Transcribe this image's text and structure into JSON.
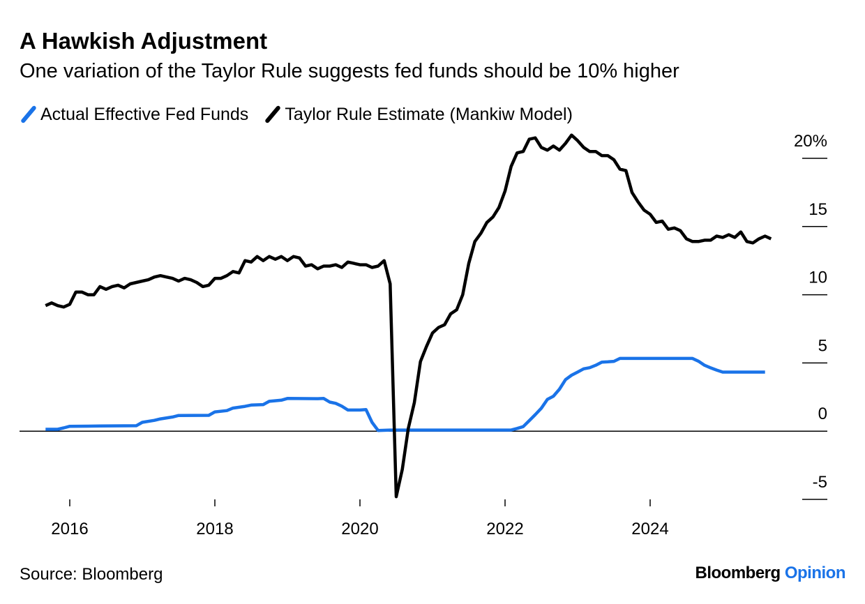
{
  "header": {
    "title": "A Hawkish Adjustment",
    "subtitle": "One variation of the Taylor Rule suggests fed funds should be 10% higher"
  },
  "footer": {
    "source": "Source: Bloomberg",
    "brand_primary": "Bloomberg",
    "brand_secondary": "Opinion"
  },
  "colors": {
    "actual": "#1a73e8",
    "taylor": "#000000",
    "brand_accent": "#1a73e8"
  },
  "chart_data": {
    "type": "line",
    "title": "A Hawkish Adjustment",
    "subtitle": "One variation of the Taylor Rule suggests fed funds should be 10% higher",
    "xlabel": "",
    "ylabel": "",
    "xlim": [
      "2015-08",
      "2025-12"
    ],
    "ylim": [
      -5,
      20
    ],
    "y_ticks": [
      20,
      15,
      10,
      5,
      0,
      -5
    ],
    "y_tick_labels": [
      "20%",
      "15",
      "10",
      "5",
      "0",
      "-5"
    ],
    "x_ticks": [
      2016,
      2018,
      2020,
      2022,
      2024
    ],
    "x_tick_labels": [
      "2016",
      "2018",
      "2020",
      "2022",
      "2024"
    ],
    "y_axis_position": "right",
    "zero_line": true,
    "grid": false,
    "legend_position": "top-left",
    "series": [
      {
        "name": "Actual Effective Fed Funds",
        "color": "#1a73e8",
        "points": [
          [
            "2015-09",
            0.14
          ],
          [
            "2015-10",
            0.14
          ],
          [
            "2015-11",
            0.14
          ],
          [
            "2015-12",
            0.24
          ],
          [
            "2016-01",
            0.36
          ],
          [
            "2016-06",
            0.38
          ],
          [
            "2016-12",
            0.4
          ],
          [
            "2017-01",
            0.65
          ],
          [
            "2017-03",
            0.79
          ],
          [
            "2017-04",
            0.9
          ],
          [
            "2017-06",
            1.04
          ],
          [
            "2017-07",
            1.15
          ],
          [
            "2017-12",
            1.16
          ],
          [
            "2018-01",
            1.41
          ],
          [
            "2018-03",
            1.51
          ],
          [
            "2018-04",
            1.69
          ],
          [
            "2018-06",
            1.82
          ],
          [
            "2018-07",
            1.91
          ],
          [
            "2018-09",
            1.95
          ],
          [
            "2018-10",
            2.19
          ],
          [
            "2018-12",
            2.27
          ],
          [
            "2019-01",
            2.4
          ],
          [
            "2019-06",
            2.38
          ],
          [
            "2019-07",
            2.4
          ],
          [
            "2019-08",
            2.13
          ],
          [
            "2019-09",
            2.04
          ],
          [
            "2019-10",
            1.83
          ],
          [
            "2019-11",
            1.55
          ],
          [
            "2020-01",
            1.55
          ],
          [
            "2020-02",
            1.58
          ],
          [
            "2020-03",
            0.65
          ],
          [
            "2020-04",
            0.05
          ],
          [
            "2020-06",
            0.08
          ],
          [
            "2021-06",
            0.08
          ],
          [
            "2022-02",
            0.08
          ],
          [
            "2022-03",
            0.2
          ],
          [
            "2022-04",
            0.33
          ],
          [
            "2022-05",
            0.77
          ],
          [
            "2022-06",
            1.21
          ],
          [
            "2022-07",
            1.68
          ],
          [
            "2022-08",
            2.33
          ],
          [
            "2022-09",
            2.56
          ],
          [
            "2022-10",
            3.08
          ],
          [
            "2022-11",
            3.78
          ],
          [
            "2022-12",
            4.1
          ],
          [
            "2023-01",
            4.33
          ],
          [
            "2023-02",
            4.57
          ],
          [
            "2023-03",
            4.65
          ],
          [
            "2023-04",
            4.83
          ],
          [
            "2023-05",
            5.06
          ],
          [
            "2023-06",
            5.08
          ],
          [
            "2023-07",
            5.12
          ],
          [
            "2023-08",
            5.33
          ],
          [
            "2024-01",
            5.33
          ],
          [
            "2024-08",
            5.33
          ],
          [
            "2024-09",
            5.13
          ],
          [
            "2024-10",
            4.83
          ],
          [
            "2024-11",
            4.64
          ],
          [
            "2024-12",
            4.48
          ],
          [
            "2025-01",
            4.33
          ],
          [
            "2025-08",
            4.33
          ]
        ]
      },
      {
        "name": "Taylor Rule Estimate (Mankiw Model)",
        "color": "#000000",
        "points": [
          [
            "2015-09",
            9.2
          ],
          [
            "2015-10",
            9.4
          ],
          [
            "2015-11",
            9.2
          ],
          [
            "2015-12",
            9.1
          ],
          [
            "2016-01",
            9.3
          ],
          [
            "2016-02",
            10.2
          ],
          [
            "2016-03",
            10.2
          ],
          [
            "2016-04",
            10.0
          ],
          [
            "2016-05",
            10.0
          ],
          [
            "2016-06",
            10.6
          ],
          [
            "2016-07",
            10.4
          ],
          [
            "2016-08",
            10.6
          ],
          [
            "2016-09",
            10.7
          ],
          [
            "2016-10",
            10.5
          ],
          [
            "2016-11",
            10.8
          ],
          [
            "2016-12",
            10.9
          ],
          [
            "2017-01",
            11.0
          ],
          [
            "2017-02",
            11.1
          ],
          [
            "2017-03",
            11.3
          ],
          [
            "2017-04",
            11.4
          ],
          [
            "2017-05",
            11.3
          ],
          [
            "2017-06",
            11.2
          ],
          [
            "2017-07",
            11.0
          ],
          [
            "2017-08",
            11.2
          ],
          [
            "2017-09",
            11.1
          ],
          [
            "2017-10",
            10.9
          ],
          [
            "2017-11",
            10.6
          ],
          [
            "2017-12",
            10.7
          ],
          [
            "2018-01",
            11.2
          ],
          [
            "2018-02",
            11.2
          ],
          [
            "2018-03",
            11.4
          ],
          [
            "2018-04",
            11.7
          ],
          [
            "2018-05",
            11.6
          ],
          [
            "2018-06",
            12.5
          ],
          [
            "2018-07",
            12.4
          ],
          [
            "2018-08",
            12.8
          ],
          [
            "2018-09",
            12.5
          ],
          [
            "2018-10",
            12.8
          ],
          [
            "2018-11",
            12.6
          ],
          [
            "2018-12",
            12.8
          ],
          [
            "2019-01",
            12.5
          ],
          [
            "2019-02",
            12.8
          ],
          [
            "2019-03",
            12.7
          ],
          [
            "2019-04",
            12.1
          ],
          [
            "2019-05",
            12.2
          ],
          [
            "2019-06",
            11.9
          ],
          [
            "2019-07",
            12.1
          ],
          [
            "2019-08",
            12.1
          ],
          [
            "2019-09",
            12.2
          ],
          [
            "2019-10",
            12.0
          ],
          [
            "2019-11",
            12.4
          ],
          [
            "2019-12",
            12.3
          ],
          [
            "2020-01",
            12.2
          ],
          [
            "2020-02",
            12.2
          ],
          [
            "2020-03",
            12.0
          ],
          [
            "2020-04",
            12.1
          ],
          [
            "2020-05",
            12.5
          ],
          [
            "2020-06",
            10.8
          ],
          [
            "2020-07",
            -4.8
          ],
          [
            "2020-08",
            -2.8
          ],
          [
            "2020-09",
            0.2
          ],
          [
            "2020-10",
            2.1
          ],
          [
            "2020-11",
            5.1
          ],
          [
            "2020-12",
            6.2
          ],
          [
            "2021-01",
            7.2
          ],
          [
            "2021-02",
            7.6
          ],
          [
            "2021-03",
            7.8
          ],
          [
            "2021-04",
            8.6
          ],
          [
            "2021-05",
            8.9
          ],
          [
            "2021-06",
            10.0
          ],
          [
            "2021-07",
            12.3
          ],
          [
            "2021-08",
            13.9
          ],
          [
            "2021-09",
            14.5
          ],
          [
            "2021-10",
            15.3
          ],
          [
            "2021-11",
            15.7
          ],
          [
            "2021-12",
            16.4
          ],
          [
            "2022-01",
            17.6
          ],
          [
            "2022-02",
            19.4
          ],
          [
            "2022-03",
            20.4
          ],
          [
            "2022-04",
            20.5
          ],
          [
            "2022-05",
            21.4
          ],
          [
            "2022-06",
            21.5
          ],
          [
            "2022-07",
            20.8
          ],
          [
            "2022-08",
            20.6
          ],
          [
            "2022-09",
            20.9
          ],
          [
            "2022-10",
            20.6
          ],
          [
            "2022-11",
            21.1
          ],
          [
            "2022-12",
            21.7
          ],
          [
            "2023-01",
            21.3
          ],
          [
            "2023-02",
            20.8
          ],
          [
            "2023-03",
            20.5
          ],
          [
            "2023-04",
            20.5
          ],
          [
            "2023-05",
            20.2
          ],
          [
            "2023-06",
            20.2
          ],
          [
            "2023-07",
            19.9
          ],
          [
            "2023-08",
            19.2
          ],
          [
            "2023-09",
            19.1
          ],
          [
            "2023-10",
            17.5
          ],
          [
            "2023-11",
            16.8
          ],
          [
            "2023-12",
            16.2
          ],
          [
            "2024-01",
            15.9
          ],
          [
            "2024-02",
            15.3
          ],
          [
            "2024-03",
            15.4
          ],
          [
            "2024-04",
            14.8
          ],
          [
            "2024-05",
            14.9
          ],
          [
            "2024-06",
            14.7
          ],
          [
            "2024-07",
            14.1
          ],
          [
            "2024-08",
            13.9
          ],
          [
            "2024-09",
            13.9
          ],
          [
            "2024-10",
            14.0
          ],
          [
            "2024-11",
            14.0
          ],
          [
            "2024-12",
            14.3
          ],
          [
            "2025-01",
            14.2
          ],
          [
            "2025-02",
            14.4
          ],
          [
            "2025-03",
            14.2
          ],
          [
            "2025-04",
            14.6
          ],
          [
            "2025-05",
            13.9
          ],
          [
            "2025-06",
            13.8
          ],
          [
            "2025-07",
            14.1
          ],
          [
            "2025-08",
            14.3
          ],
          [
            "2025-09",
            14.1
          ]
        ]
      }
    ]
  }
}
